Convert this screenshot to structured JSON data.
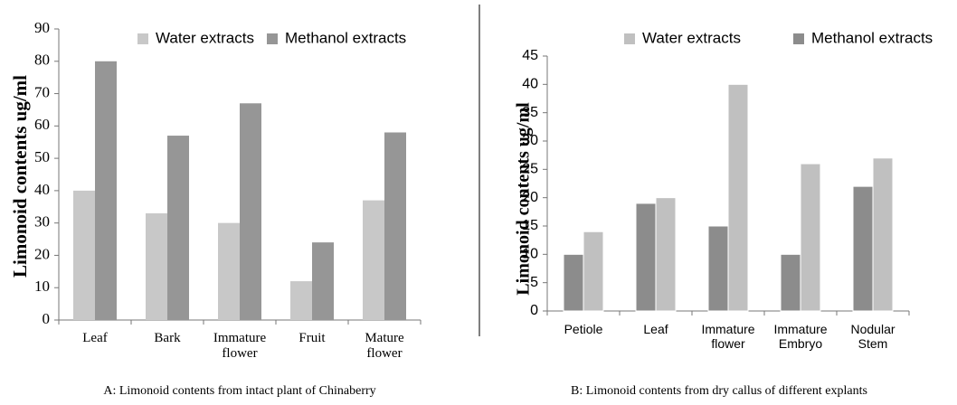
{
  "chart_data": [
    {
      "type": "bar",
      "y_label": "Limonoid contents ug/ml",
      "caption": "A:  Limonoid contents from intact plant of Chinaberry",
      "categories": [
        "Leaf",
        "Bark",
        "Immature flower",
        "Fruit",
        "Mature flower"
      ],
      "series": [
        {
          "name": "Water extracts",
          "color": "#c8c8c8",
          "values": [
            40,
            33,
            30,
            12,
            37
          ]
        },
        {
          "name": "Methanol extracts",
          "color": "#969696",
          "values": [
            80,
            57,
            67,
            24,
            58
          ]
        }
      ],
      "ylim": [
        0,
        90
      ],
      "yticks": [
        0,
        10,
        20,
        30,
        40,
        50,
        60,
        70,
        80,
        90
      ]
    },
    {
      "type": "bar",
      "y_label": "Limonoid contents ug/ml",
      "caption": "B: Limonoid contents from dry callus of different explants",
      "categories": [
        "Petiole",
        "Leaf",
        "Immature flower",
        "Immature Embryo",
        "Nodular Stem"
      ],
      "series": [
        {
          "name": "Water extracts",
          "color": "#c0c0c0",
          "values": [
            14,
            20,
            40,
            26,
            27
          ]
        },
        {
          "name": "Methanol extracts",
          "color": "#8c8c8c",
          "values": [
            10,
            19,
            15,
            10,
            22
          ]
        }
      ],
      "ylim": [
        0,
        45
      ],
      "yticks": [
        0,
        5,
        10,
        15,
        20,
        25,
        30,
        35,
        40,
        45
      ]
    }
  ]
}
